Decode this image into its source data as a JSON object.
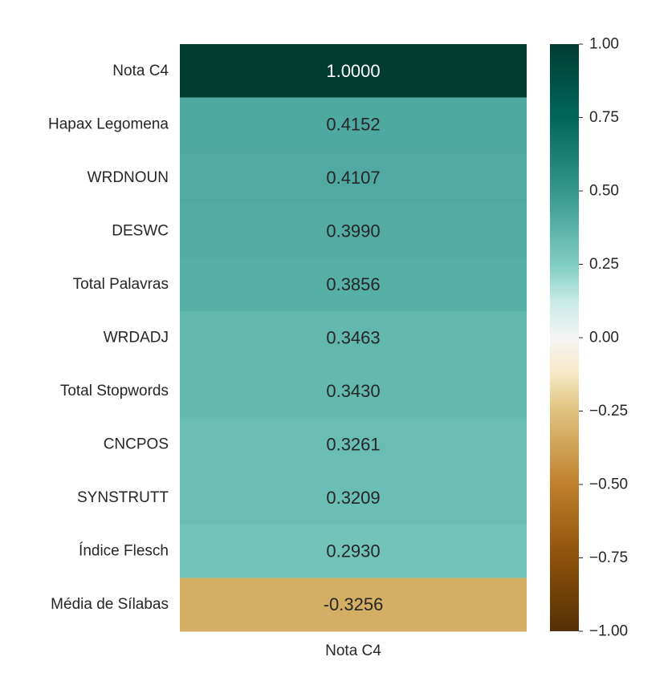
{
  "chart_data": {
    "type": "heatmap",
    "rows": [
      "Nota C4",
      "Hapax Legomena",
      "WRDNOUN",
      "DESWC",
      "Total Palavras",
      "WRDADJ",
      "Total Stopwords",
      "CNCPOS",
      "SYNSTRUTT",
      "Índice Flesch",
      "Média de Sílabas"
    ],
    "columns": [
      "Nota C4"
    ],
    "values": [
      1.0,
      0.4152,
      0.4107,
      0.399,
      0.3856,
      0.3463,
      0.343,
      0.3261,
      0.3209,
      0.293,
      -0.3256
    ],
    "value_labels": [
      "1.0000",
      "0.4152",
      "0.4107",
      "0.3990",
      "0.3856",
      "0.3463",
      "0.3430",
      "0.3261",
      "0.3209",
      "0.2930",
      "-0.3256"
    ],
    "colorbar": {
      "colormap": "BrBG",
      "range": [
        -1,
        1
      ],
      "ticks": [
        "1.00",
        "0.75",
        "0.50",
        "0.25",
        "0.00",
        "−0.25",
        "−0.50",
        "−0.75",
        "−1.00"
      ],
      "tick_values": [
        1.0,
        0.75,
        0.5,
        0.25,
        0.0,
        -0.25,
        -0.5,
        -0.75,
        -1.0
      ]
    },
    "colors": {
      "text_dark": "#262626",
      "text_light": "#ffffff"
    }
  }
}
